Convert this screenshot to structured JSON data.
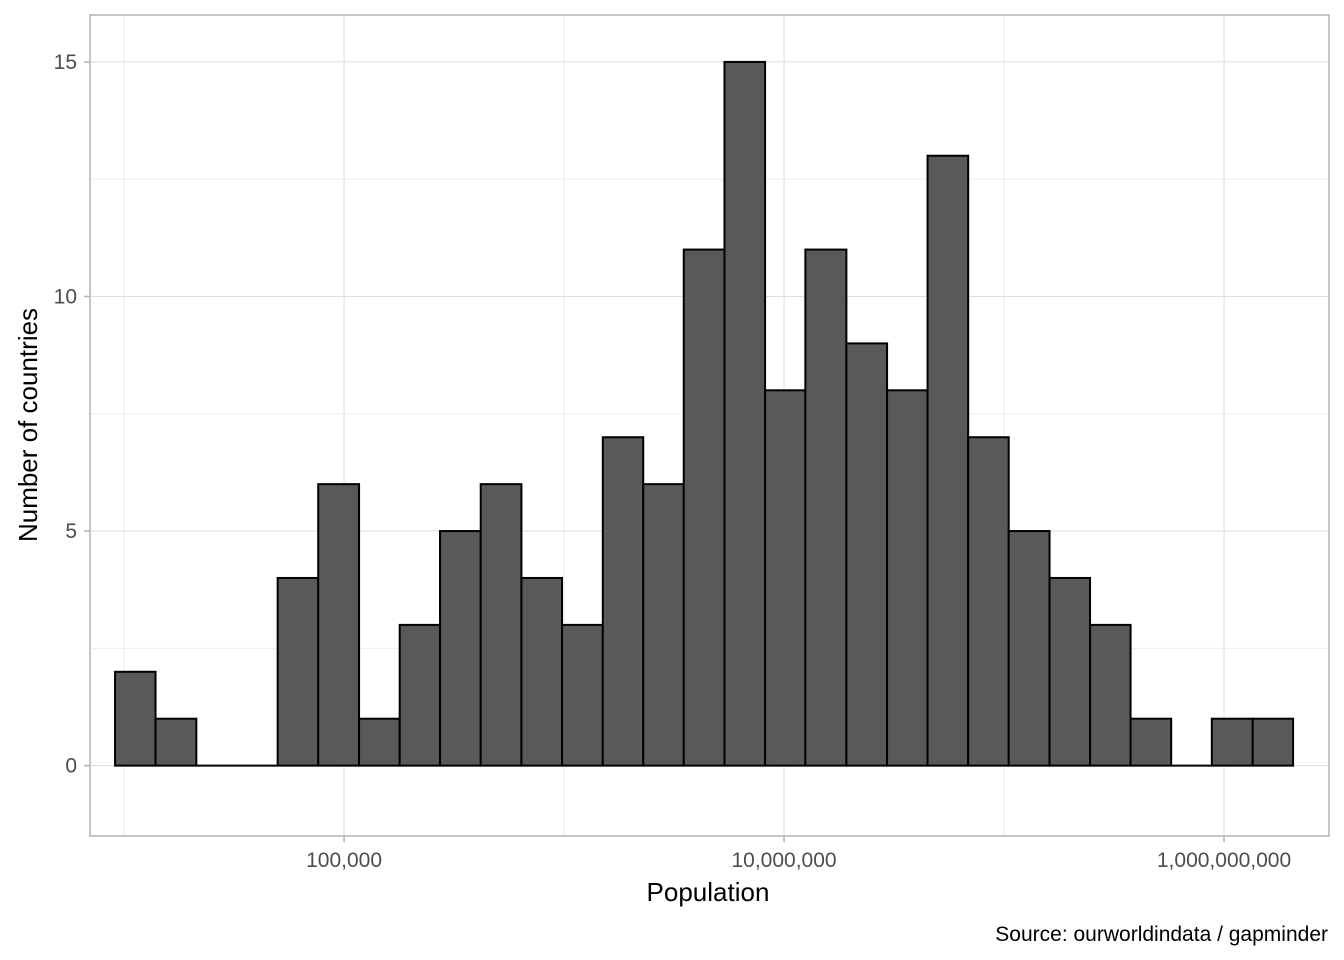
{
  "chart_data": {
    "type": "histogram",
    "title": "",
    "xlabel": "Population",
    "ylabel": "Number of countries",
    "caption": "Source: ourworldindata / gapminder",
    "x_scale": "log10",
    "xlim": [
      7000,
      3000000000
    ],
    "ylim": [
      0,
      15
    ],
    "grid": true,
    "x_ticks": [
      {
        "value": 100000,
        "label": "100,000"
      },
      {
        "value": 10000000,
        "label": "10,000,000"
      },
      {
        "value": 1000000000,
        "label": "1,000,000,000"
      }
    ],
    "y_ticks": [
      {
        "value": 0,
        "label": "0"
      },
      {
        "value": 5,
        "label": "5"
      },
      {
        "value": 10,
        "label": "10"
      },
      {
        "value": 15,
        "label": "15"
      }
    ],
    "bins": [
      {
        "x0": 9100,
        "x1": 13900,
        "count": 2
      },
      {
        "x0": 13900,
        "x1": 21300,
        "count": 1
      },
      {
        "x0": 21300,
        "x1": 32600,
        "count": 0
      },
      {
        "x0": 32600,
        "x1": 49900,
        "count": 0
      },
      {
        "x0": 49900,
        "x1": 76300,
        "count": 4
      },
      {
        "x0": 76300,
        "x1": 117000,
        "count": 6
      },
      {
        "x0": 117000,
        "x1": 179000,
        "count": 1
      },
      {
        "x0": 179000,
        "x1": 273000,
        "count": 3
      },
      {
        "x0": 273000,
        "x1": 418000,
        "count": 5
      },
      {
        "x0": 418000,
        "x1": 640000,
        "count": 6
      },
      {
        "x0": 640000,
        "x1": 979000,
        "count": 4
      },
      {
        "x0": 979000,
        "x1": 1500000,
        "count": 3
      },
      {
        "x0": 1500000,
        "x1": 2290000,
        "count": 7
      },
      {
        "x0": 2290000,
        "x1": 3500000,
        "count": 6
      },
      {
        "x0": 3500000,
        "x1": 5360000,
        "count": 11
      },
      {
        "x0": 5360000,
        "x1": 8200000,
        "count": 15
      },
      {
        "x0": 8200000,
        "x1": 12500000,
        "count": 8
      },
      {
        "x0": 12500000,
        "x1": 19200000,
        "count": 11
      },
      {
        "x0": 19200000,
        "x1": 29400000,
        "count": 9
      },
      {
        "x0": 29400000,
        "x1": 44900000,
        "count": 8
      },
      {
        "x0": 44900000,
        "x1": 68700000,
        "count": 13
      },
      {
        "x0": 68700000,
        "x1": 105000000,
        "count": 7
      },
      {
        "x0": 105000000,
        "x1": 161000000,
        "count": 5
      },
      {
        "x0": 161000000,
        "x1": 246000000,
        "count": 4
      },
      {
        "x0": 246000000,
        "x1": 376000000,
        "count": 3
      },
      {
        "x0": 376000000,
        "x1": 575000000,
        "count": 1
      },
      {
        "x0": 575000000,
        "x1": 880000000,
        "count": 0
      },
      {
        "x0": 880000000,
        "x1": 1350000000,
        "count": 1
      },
      {
        "x0": 1350000000,
        "x1": 2060000000,
        "count": 1
      }
    ],
    "colors": {
      "bar_fill": "#595959",
      "bar_stroke": "#000000",
      "grid_major": "#dedede",
      "grid_minor": "#ededed",
      "panel_border": "#b3b3b3",
      "tick_text": "#4d4d4d"
    }
  }
}
